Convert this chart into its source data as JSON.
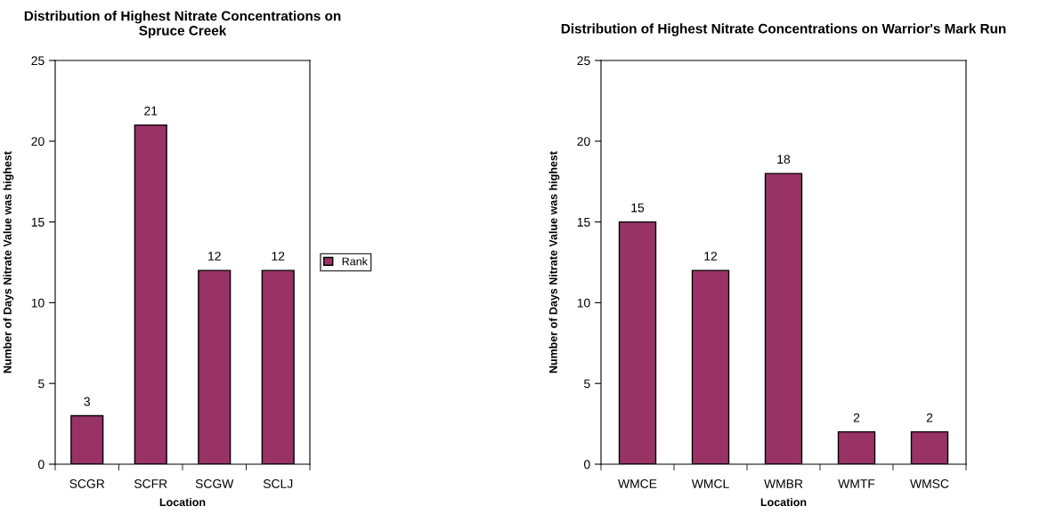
{
  "chart_data": [
    {
      "type": "bar",
      "title": "Distribution of Highest Nitrate Concentrations on Spruce Creek",
      "xlabel": "Location",
      "ylabel": "Number of Days Nitrate Value was highest",
      "categories": [
        "SCGR",
        "SCFR",
        "SCGW",
        "SCLJ"
      ],
      "series": [
        {
          "name": "Rank",
          "color": "#993366",
          "values": [
            3,
            21,
            12,
            12
          ]
        }
      ],
      "ylim": [
        0,
        25
      ],
      "yticks": [
        0,
        5,
        10,
        15,
        20,
        25
      ],
      "data_labels": true,
      "legend": "right",
      "grid": false
    },
    {
      "type": "bar",
      "title": "Distribution of Highest Nitrate Concentrations on Warrior's Mark Run",
      "xlabel": "Location",
      "ylabel": "Number of Days Nitrate Value was highest",
      "categories": [
        "WMCE",
        "WMCL",
        "WMBR",
        "WMTF",
        "WMSC"
      ],
      "series": [
        {
          "color": "#993366",
          "values": [
            15,
            12,
            18,
            2,
            2
          ]
        }
      ],
      "ylim": [
        0,
        25
      ],
      "yticks": [
        0,
        5,
        10,
        15,
        20,
        25
      ],
      "data_labels": true,
      "grid": false
    }
  ]
}
